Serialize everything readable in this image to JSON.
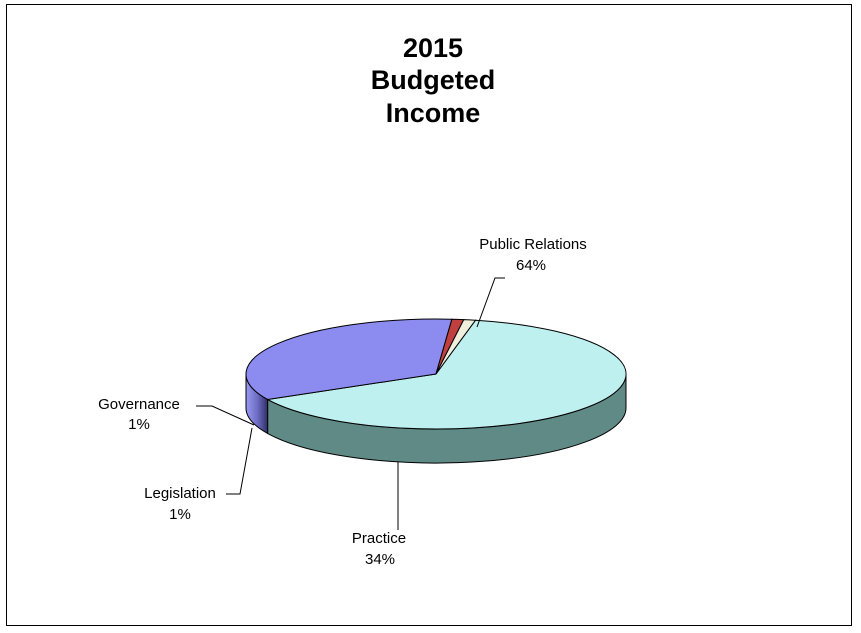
{
  "chart_data": {
    "type": "pie",
    "style": "3d",
    "title_lines": [
      "2015",
      "Budgeted",
      "Income"
    ],
    "slices": [
      {
        "label": "Public Relations",
        "percent": "64%",
        "value": 64,
        "color": "#bff0f0",
        "side": "#5f8a86"
      },
      {
        "label": "Practice",
        "percent": "34%",
        "value": 34,
        "color": "#8c8cf0",
        "side": "#3d3d80"
      },
      {
        "label": "Legislation",
        "percent": "1%",
        "value": 1,
        "color": "#c04040",
        "side": "#702020"
      },
      {
        "label": "Governance",
        "percent": "1%",
        "value": 1,
        "color": "#f0eedc",
        "side": "#9a9880"
      }
    ]
  }
}
